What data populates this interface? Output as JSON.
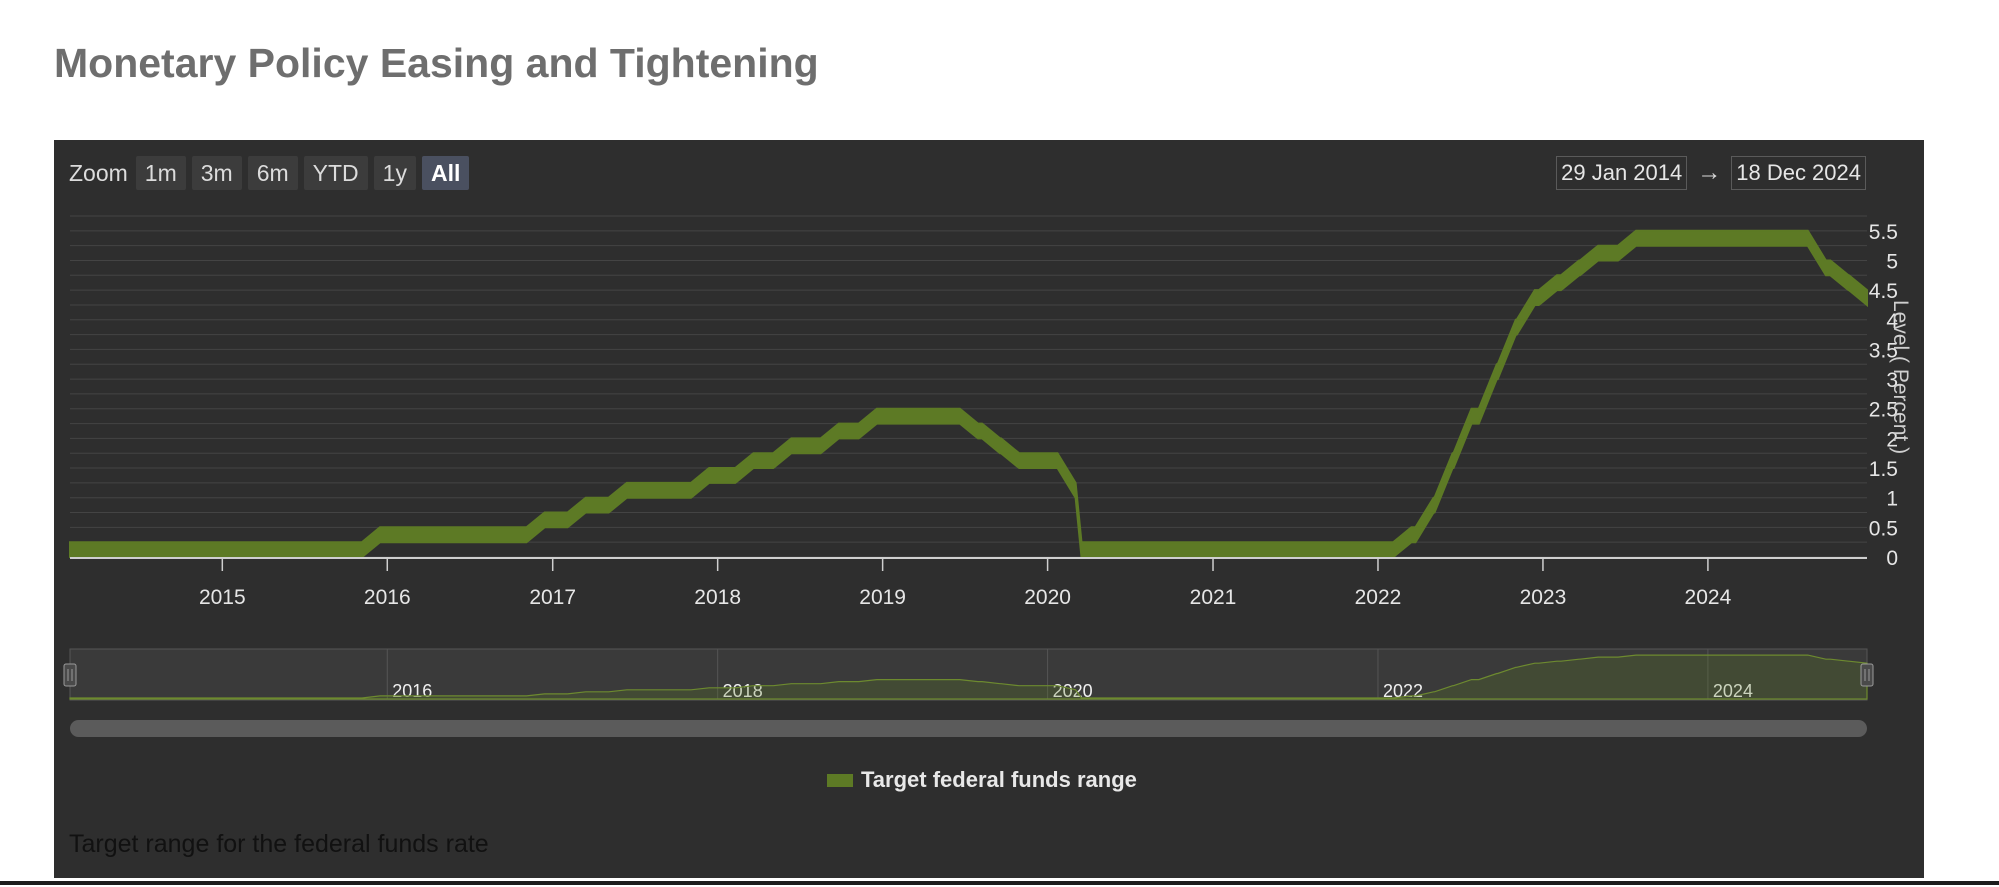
{
  "page": {
    "title": "Monetary Policy Easing and Tightening"
  },
  "toolbar": {
    "zoom_label": "Zoom",
    "buttons": [
      "1m",
      "3m",
      "6m",
      "YTD",
      "1y",
      "All"
    ],
    "active_button": "All",
    "range_from": "29 Jan 2014",
    "range_arrow": "→",
    "range_to": "18 Dec 2024"
  },
  "legend": {
    "label": "Target federal funds range",
    "color": "#5d7a25"
  },
  "caption": "Target range for the federal funds rate",
  "colors": {
    "panel_bg": "#2e2e2e",
    "series_fill": "#5d7a25",
    "grid": "#444444",
    "navigator_bg": "#3a3a3a"
  },
  "chart_data": {
    "type": "area",
    "title": "",
    "ylabel": "Level ( Percent )",
    "xlabel": "",
    "x_range": [
      "2014-01-29",
      "2024-12-18"
    ],
    "ylim": [
      0,
      5.75
    ],
    "y_ticks": [
      "0",
      "0.5",
      "1",
      "1.5",
      "2",
      "2.5",
      "3",
      "3.5",
      "4",
      "4.5",
      "5",
      "5.5"
    ],
    "x_ticks": [
      "2015",
      "2016",
      "2017",
      "2018",
      "2019",
      "2020",
      "2021",
      "2022",
      "2023",
      "2024"
    ],
    "navigator_ticks": [
      "2016",
      "2018",
      "2020",
      "2022",
      "2024"
    ],
    "grid": true,
    "legend_position": "bottom-center",
    "series": [
      {
        "name": "Target federal funds range",
        "points": [
          {
            "date": "2014-01-29",
            "low": 0,
            "high": 0.25
          },
          {
            "date": "2015-12-16",
            "low": 0.25,
            "high": 0.5
          },
          {
            "date": "2016-12-14",
            "low": 0.5,
            "high": 0.75
          },
          {
            "date": "2017-03-15",
            "low": 0.75,
            "high": 1.0
          },
          {
            "date": "2017-06-14",
            "low": 1.0,
            "high": 1.25
          },
          {
            "date": "2017-12-13",
            "low": 1.25,
            "high": 1.5
          },
          {
            "date": "2018-03-21",
            "low": 1.5,
            "high": 1.75
          },
          {
            "date": "2018-06-13",
            "low": 1.75,
            "high": 2.0
          },
          {
            "date": "2018-09-26",
            "low": 2.0,
            "high": 2.25
          },
          {
            "date": "2018-12-19",
            "low": 2.25,
            "high": 2.5
          },
          {
            "date": "2019-07-31",
            "low": 2.0,
            "high": 2.25
          },
          {
            "date": "2019-09-18",
            "low": 1.75,
            "high": 2.0
          },
          {
            "date": "2019-10-30",
            "low": 1.5,
            "high": 1.75
          },
          {
            "date": "2020-03-03",
            "low": 1.0,
            "high": 1.25
          },
          {
            "date": "2020-03-16",
            "low": 0,
            "high": 0.25
          },
          {
            "date": "2022-03-16",
            "low": 0.25,
            "high": 0.5
          },
          {
            "date": "2022-05-04",
            "low": 0.75,
            "high": 1.0
          },
          {
            "date": "2022-06-15",
            "low": 1.5,
            "high": 1.75
          },
          {
            "date": "2022-07-27",
            "low": 2.25,
            "high": 2.5
          },
          {
            "date": "2022-09-21",
            "low": 3.0,
            "high": 3.25
          },
          {
            "date": "2022-11-02",
            "low": 3.75,
            "high": 4.0
          },
          {
            "date": "2022-12-14",
            "low": 4.25,
            "high": 4.5
          },
          {
            "date": "2023-02-01",
            "low": 4.5,
            "high": 4.75
          },
          {
            "date": "2023-03-22",
            "low": 4.75,
            "high": 5.0
          },
          {
            "date": "2023-05-03",
            "low": 5.0,
            "high": 5.25
          },
          {
            "date": "2023-07-26",
            "low": 5.25,
            "high": 5.5
          },
          {
            "date": "2024-09-18",
            "low": 4.75,
            "high": 5.0
          },
          {
            "date": "2024-11-07",
            "low": 4.5,
            "high": 4.75
          },
          {
            "date": "2024-12-18",
            "low": 4.25,
            "high": 4.5
          }
        ]
      }
    ]
  }
}
